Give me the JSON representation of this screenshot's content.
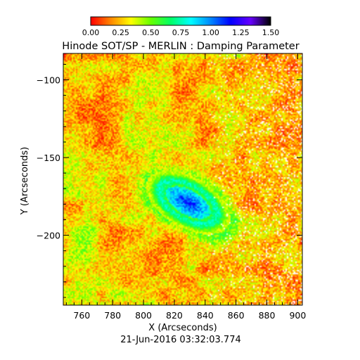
{
  "chart_data": {
    "type": "heatmap",
    "title": "Hinode SOT/SP - MERLIN : Damping Parameter",
    "xlabel": "X (Arcseconds)",
    "ylabel": "Y (Arcseconds)",
    "timestamp": "21-Jun-2016 03:32:03.774",
    "xlim": [
      748,
      903
    ],
    "ylim": [
      -245,
      -83
    ],
    "xticks": [
      760,
      780,
      800,
      820,
      840,
      860,
      880,
      900
    ],
    "xtick_labels": [
      "760",
      "780",
      "800",
      "820",
      "840",
      "860",
      "880",
      "900"
    ],
    "yticks": [
      -100,
      -150,
      -200
    ],
    "ytick_labels": [
      "−100",
      "−150",
      "−200"
    ],
    "colorbar": {
      "range": [
        0,
        1.5
      ],
      "ticks": [
        0,
        0.25,
        0.5,
        0.75,
        1.0,
        1.25,
        1.5
      ],
      "tick_labels": [
        "0.00",
        "0.25",
        "0.50",
        "0.75",
        "1.00",
        "1.25",
        "1.50"
      ],
      "colors": [
        "#ff0000",
        "#ff8800",
        "#ffff00",
        "#66ff00",
        "#00ff66",
        "#00ffff",
        "#0088ff",
        "#0000ff",
        "#6600ff",
        "#000000"
      ]
    },
    "feature": {
      "name": "sunspot",
      "center": [
        829,
        -179
      ],
      "umbra_value": 1.15,
      "penumbra_value": 0.75,
      "background_value": 0.1
    },
    "grid": false,
    "legend": "none"
  }
}
